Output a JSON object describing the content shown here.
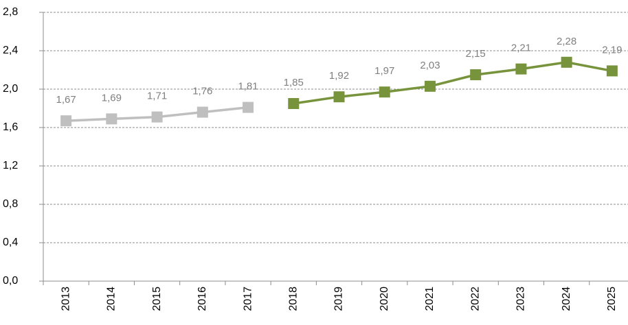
{
  "chart_data": {
    "type": "line",
    "categories": [
      "2013",
      "2014",
      "2015",
      "2016",
      "2017",
      "2018",
      "2019",
      "2020",
      "2021",
      "2022",
      "2023",
      "2024",
      "2025"
    ],
    "series": [
      {
        "color": "#bfbfbf",
        "values": [
          1.67,
          1.69,
          1.71,
          1.76,
          1.81,
          null,
          null,
          null,
          null,
          null,
          null,
          null,
          null
        ],
        "value_labels": [
          "1,67",
          "1,69",
          "1,71",
          "1,76",
          "1,81",
          null,
          null,
          null,
          null,
          null,
          null,
          null,
          null
        ]
      },
      {
        "color": "#77933c",
        "values": [
          null,
          null,
          null,
          null,
          null,
          1.85,
          1.92,
          1.97,
          2.03,
          2.15,
          2.21,
          2.28,
          2.19
        ],
        "value_labels": [
          null,
          null,
          null,
          null,
          null,
          "1,85",
          "1,92",
          "1,97",
          "2,03",
          "2,15",
          "2,21",
          "2,28",
          "2,19"
        ]
      }
    ],
    "ylim": [
      0,
      2.8
    ],
    "yticks": [
      {
        "value": 0,
        "label": "0,0"
      },
      {
        "value": 0.4,
        "label": "0,4"
      },
      {
        "value": 0.8,
        "label": "0,8"
      },
      {
        "value": 1.2,
        "label": "1,2"
      },
      {
        "value": 1.6,
        "label": "1,6"
      },
      {
        "value": 2.0,
        "label": "2,0"
      },
      {
        "value": 2.4,
        "label": "2,4"
      },
      {
        "value": 2.8,
        "label": "2,8"
      }
    ],
    "grid": true
  }
}
